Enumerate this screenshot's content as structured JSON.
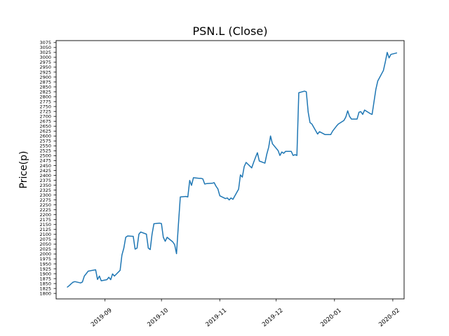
{
  "chart_data": {
    "type": "line",
    "title": "PSN.L (Close)",
    "xlabel": "",
    "ylabel": "Price(p)",
    "legend": "none",
    "grid": false,
    "background": "#ffffff",
    "axis_color": "#000000",
    "line_color": "#1f77b4",
    "line_width": 1.5,
    "ylim": [
      1772,
      3085
    ],
    "xlim": [
      "2019-08-06",
      "2020-02-07"
    ],
    "x_ticks": [
      "2019-09",
      "2019-10",
      "2019-11",
      "2019-12",
      "2020-01",
      "2020-02"
    ],
    "y_ticks": [
      1800,
      1825,
      1850,
      1875,
      1900,
      1925,
      1950,
      1975,
      2000,
      2025,
      2050,
      2075,
      2100,
      2125,
      2150,
      2175,
      2200,
      2225,
      2250,
      2275,
      2300,
      2325,
      2350,
      2375,
      2400,
      2425,
      2450,
      2475,
      2500,
      2525,
      2550,
      2575,
      2600,
      2625,
      2650,
      2675,
      2700,
      2725,
      2750,
      2775,
      2800,
      2825,
      2850,
      2875,
      2900,
      2925,
      2950,
      2975,
      3000,
      3025,
      3050,
      3075
    ],
    "series": [
      {
        "name": "PSN.L Close",
        "color": "#1f77b4",
        "dates": [
          "2019-08-12",
          "2019-08-13",
          "2019-08-14",
          "2019-08-15",
          "2019-08-16",
          "2019-08-19",
          "2019-08-20",
          "2019-08-21",
          "2019-08-22",
          "2019-08-23",
          "2019-08-27",
          "2019-08-28",
          "2019-08-29",
          "2019-08-30",
          "2019-09-02",
          "2019-09-03",
          "2019-09-04",
          "2019-09-05",
          "2019-09-06",
          "2019-09-09",
          "2019-09-10",
          "2019-09-11",
          "2019-09-12",
          "2019-09-13",
          "2019-09-16",
          "2019-09-17",
          "2019-09-18",
          "2019-09-19",
          "2019-09-20",
          "2019-09-23",
          "2019-09-24",
          "2019-09-25",
          "2019-09-26",
          "2019-09-27",
          "2019-09-30",
          "2019-10-01",
          "2019-10-02",
          "2019-10-03",
          "2019-10-04",
          "2019-10-07",
          "2019-10-08",
          "2019-10-09",
          "2019-10-10",
          "2019-10-11",
          "2019-10-14",
          "2019-10-15",
          "2019-10-16",
          "2019-10-17",
          "2019-10-18",
          "2019-10-21",
          "2019-10-22",
          "2019-10-23",
          "2019-10-24",
          "2019-10-25",
          "2019-10-28",
          "2019-10-29",
          "2019-10-30",
          "2019-10-31",
          "2019-11-01",
          "2019-11-04",
          "2019-11-05",
          "2019-11-06",
          "2019-11-07",
          "2019-11-08",
          "2019-11-11",
          "2019-11-12",
          "2019-11-13",
          "2019-11-14",
          "2019-11-15",
          "2019-11-18",
          "2019-11-19",
          "2019-11-20",
          "2019-11-21",
          "2019-11-22",
          "2019-11-25",
          "2019-11-26",
          "2019-11-27",
          "2019-11-28",
          "2019-11-29",
          "2019-12-02",
          "2019-12-03",
          "2019-12-04",
          "2019-12-05",
          "2019-12-06",
          "2019-12-09",
          "2019-12-10",
          "2019-12-11",
          "2019-12-12",
          "2019-12-13",
          "2019-12-16",
          "2019-12-17",
          "2019-12-18",
          "2019-12-19",
          "2019-12-20",
          "2019-12-23",
          "2019-12-24",
          "2019-12-27",
          "2019-12-30",
          "2019-12-31",
          "2020-01-02",
          "2020-01-03",
          "2020-01-06",
          "2020-01-07",
          "2020-01-08",
          "2020-01-09",
          "2020-01-10",
          "2020-01-13",
          "2020-01-14",
          "2020-01-15",
          "2020-01-16",
          "2020-01-17",
          "2020-01-20",
          "2020-01-21",
          "2020-01-22",
          "2020-01-23",
          "2020-01-24",
          "2020-01-27",
          "2020-01-28",
          "2020-01-29",
          "2020-01-30",
          "2020-01-31",
          "2020-02-03"
        ],
        "values": [
          1832,
          1840,
          1849,
          1857,
          1860,
          1853,
          1858,
          1888,
          1900,
          1913,
          1920,
          1871,
          1888,
          1864,
          1870,
          1882,
          1870,
          1899,
          1888,
          1917,
          1995,
          2030,
          2085,
          2092,
          2090,
          2025,
          2030,
          2101,
          2112,
          2101,
          2030,
          2023,
          2100,
          2154,
          2157,
          2155,
          2085,
          2065,
          2085,
          2062,
          2048,
          2002,
          2150,
          2290,
          2293,
          2290,
          2374,
          2349,
          2388,
          2385,
          2385,
          2382,
          2356,
          2358,
          2360,
          2363,
          2345,
          2331,
          2296,
          2282,
          2285,
          2275,
          2285,
          2278,
          2330,
          2402,
          2391,
          2445,
          2466,
          2438,
          2466,
          2491,
          2515,
          2473,
          2462,
          2508,
          2543,
          2600,
          2561,
          2526,
          2501,
          2519,
          2512,
          2522,
          2522,
          2501,
          2505,
          2501,
          2820,
          2828,
          2825,
          2721,
          2668,
          2661,
          2610,
          2622,
          2607,
          2607,
          2625,
          2650,
          2661,
          2679,
          2696,
          2728,
          2700,
          2686,
          2686,
          2721,
          2724,
          2710,
          2732,
          2714,
          2710,
          2774,
          2838,
          2880,
          2933,
          2976,
          3025,
          2997,
          3015,
          3022
        ]
      }
    ]
  }
}
